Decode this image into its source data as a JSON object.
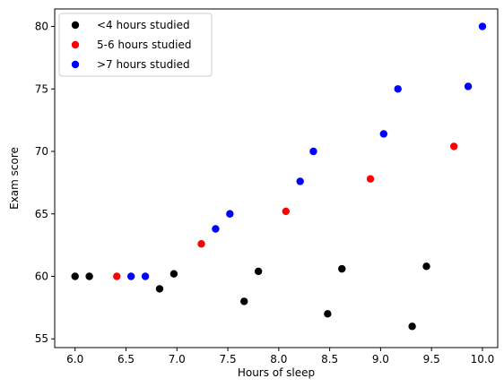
{
  "chart_data": {
    "type": "scatter",
    "title": "",
    "xlabel": "Hours of sleep",
    "ylabel": "Exam score",
    "xlim": [
      5.8,
      10.15
    ],
    "ylim": [
      54.3,
      81.4
    ],
    "xticks": [
      "6.0",
      "6.5",
      "7.0",
      "7.5",
      "8.0",
      "8.5",
      "9.0",
      "9.5",
      "10.0"
    ],
    "yticks": [
      "55",
      "60",
      "65",
      "70",
      "75",
      "80"
    ],
    "grid": false,
    "legend_position": "top-left",
    "series": [
      {
        "name": "<4 hours studied",
        "color": "#000000",
        "points": [
          [
            6.0,
            60.0
          ],
          [
            6.14,
            60.0
          ],
          [
            6.83,
            59.0
          ],
          [
            6.97,
            60.2
          ],
          [
            7.66,
            58.0
          ],
          [
            7.8,
            60.4
          ],
          [
            8.48,
            57.0
          ],
          [
            8.62,
            60.6
          ],
          [
            9.31,
            56.0
          ],
          [
            9.45,
            60.8
          ]
        ]
      },
      {
        "name": "5-6 hours studied",
        "color": "#ff0000",
        "points": [
          [
            6.41,
            60.0
          ],
          [
            7.24,
            62.6
          ],
          [
            8.07,
            65.2
          ],
          [
            8.9,
            67.8
          ],
          [
            9.72,
            70.4
          ]
        ]
      },
      {
        "name": ">7 hours studied",
        "color": "#0000ff",
        "points": [
          [
            6.55,
            60.0
          ],
          [
            6.69,
            60.0
          ],
          [
            7.38,
            63.8
          ],
          [
            7.52,
            65.0
          ],
          [
            8.21,
            67.6
          ],
          [
            8.34,
            70.0
          ],
          [
            9.03,
            71.4
          ],
          [
            9.17,
            75.0
          ],
          [
            9.86,
            75.2
          ],
          [
            10.0,
            80.0
          ]
        ]
      }
    ]
  }
}
